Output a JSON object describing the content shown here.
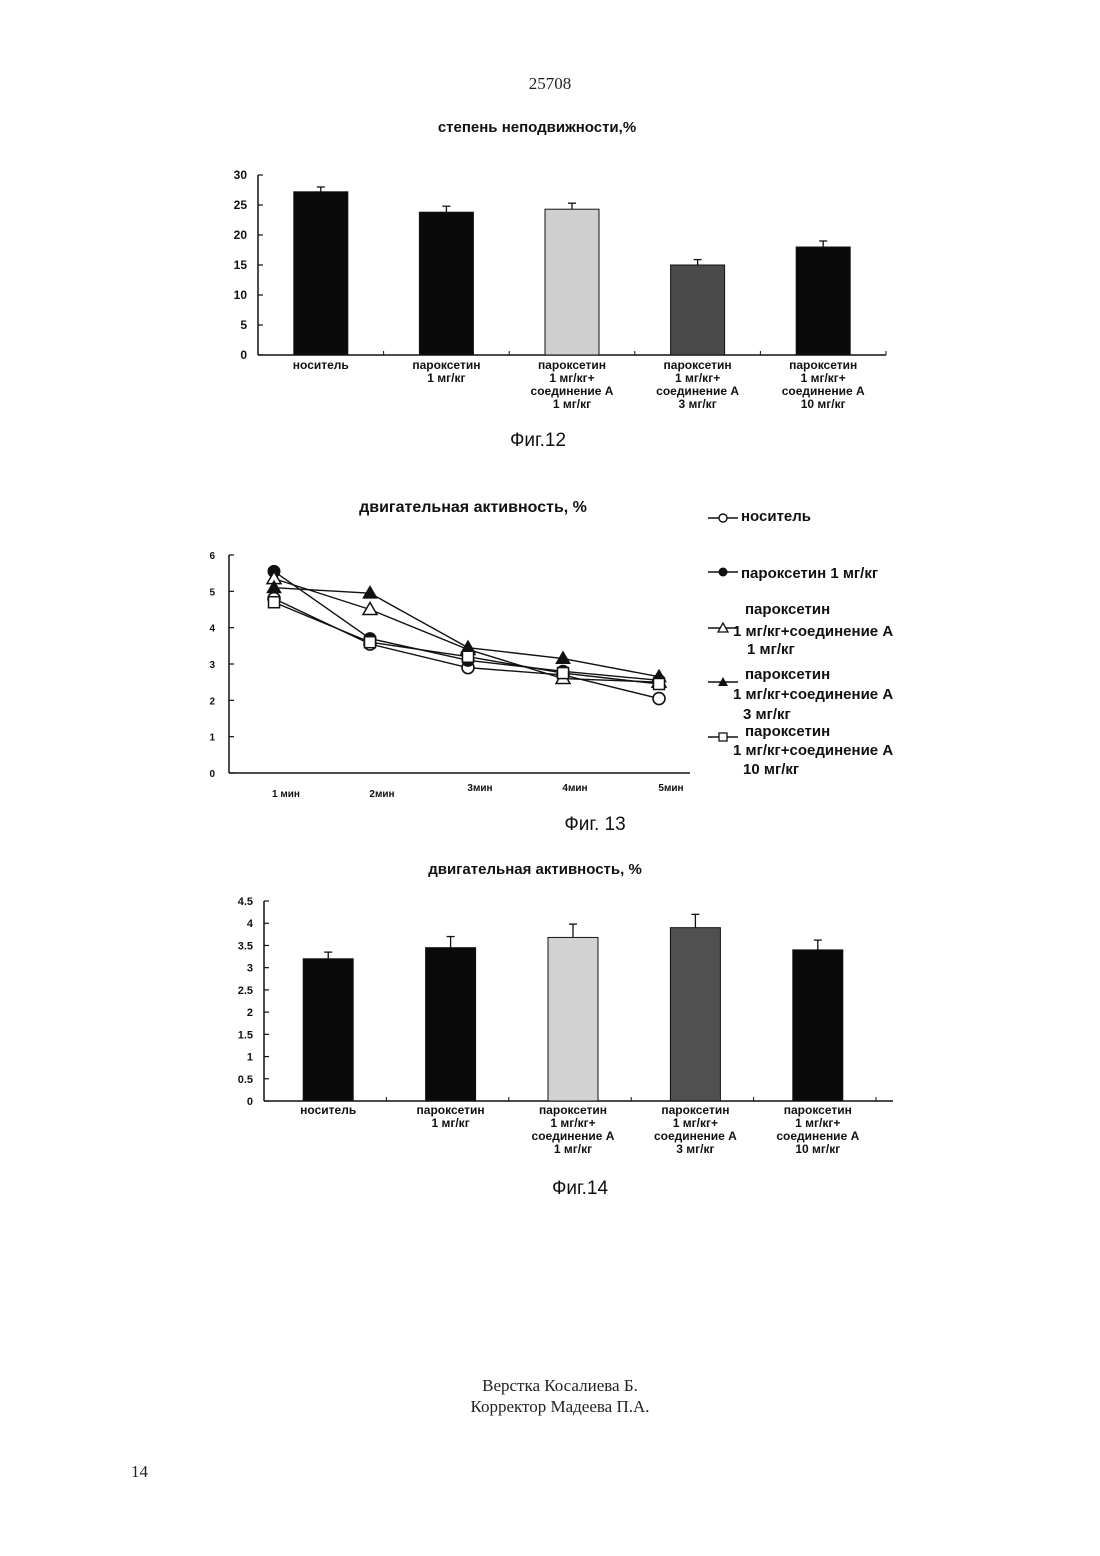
{
  "page": {
    "number_top": "25708",
    "number_bottom": "14",
    "credits": [
      "Верстка Косалиева Б.",
      "Корректор Мадеева П.А."
    ]
  },
  "chart_data": [
    {
      "type": "bar",
      "figure_label": "Фиг.12",
      "title": "степень неподвижности,%",
      "categories": [
        [
          "носитель"
        ],
        [
          "пароксетин",
          "1 мг/кг"
        ],
        [
          "пароксетин",
          "1 мг/кг+",
          "соединение А",
          "1 мг/кг"
        ],
        [
          "пароксетин",
          "1 мг/кг+",
          "соединение А",
          "3 мг/кг"
        ],
        [
          "пароксетин",
          "1 мг/кг+",
          "соединение А",
          "10 мг/кг"
        ]
      ],
      "values": [
        27.2,
        23.8,
        24.3,
        15.0,
        18.0
      ],
      "errors": [
        0.8,
        1.0,
        1.0,
        0.9,
        1.0
      ],
      "bar_fills": [
        "#0a0a0a",
        "#0a0a0a",
        "#cfcfcf",
        "#4a4a4a",
        "#0a0a0a"
      ],
      "ylim": [
        0,
        30
      ],
      "yticks": [
        "0",
        "5",
        "10",
        "15",
        "20",
        "25",
        "30"
      ],
      "xlabel": "",
      "ylabel": ""
    },
    {
      "type": "line",
      "figure_label": "Фиг. 13",
      "title": "двигательная активность, %",
      "x": [
        "1 мин",
        "2мин",
        "3мин",
        "4мин",
        "5мин"
      ],
      "ylim": [
        0,
        6
      ],
      "yticks": [
        "0",
        "1",
        "2",
        "3",
        "4",
        "5",
        "6"
      ],
      "legend_position": "right",
      "series": [
        {
          "name": [
            "носитель"
          ],
          "marker": "open-circle",
          "values": [
            4.8,
            3.55,
            2.9,
            2.7,
            2.05
          ]
        },
        {
          "name": [
            "пароксетин 1 мг/кг"
          ],
          "marker": "filled-circle",
          "values": [
            5.55,
            3.7,
            3.1,
            2.8,
            2.55
          ]
        },
        {
          "name": [
            "пароксетин",
            "1 мг/кг+соединение А",
            "1 мг/кг"
          ],
          "marker": "open-triangle",
          "values": [
            5.35,
            4.5,
            3.4,
            2.6,
            2.5
          ]
        },
        {
          "name": [
            "пароксетин",
            "1 мг/кг+соединение А",
            "3 мг/кг"
          ],
          "marker": "filled-triangle",
          "values": [
            5.1,
            4.95,
            3.45,
            3.15,
            2.65
          ]
        },
        {
          "name": [
            "пароксетин",
            "1 мг/кг+соединение А",
            "10 мг/кг"
          ],
          "marker": "open-square",
          "values": [
            4.7,
            3.6,
            3.2,
            2.75,
            2.45
          ]
        }
      ]
    },
    {
      "type": "bar",
      "figure_label": "Фиг.14",
      "title": "двигательная активность, %",
      "categories": [
        [
          "носитель"
        ],
        [
          "пароксетин",
          "1 мг/кг"
        ],
        [
          "пароксетин",
          "1 мг/кг+",
          "соединение А",
          "1 мг/кг"
        ],
        [
          "пароксетин",
          "1 мг/кг+",
          "соединение А",
          "3 мг/кг"
        ],
        [
          "пароксетин",
          "1 мг/кг+",
          "соединение А",
          "10 мг/кг"
        ]
      ],
      "values": [
        3.2,
        3.45,
        3.68,
        3.9,
        3.4
      ],
      "errors": [
        0.15,
        0.25,
        0.3,
        0.3,
        0.22
      ],
      "bar_fills": [
        "#0a0a0a",
        "#0a0a0a",
        "#d2d2d2",
        "#505050",
        "#0a0a0a"
      ],
      "ylim": [
        0,
        4.5
      ],
      "yticks": [
        "0",
        "0.5",
        "1",
        "1.5",
        "2",
        "2.5",
        "3",
        "3.5",
        "4",
        "4.5"
      ],
      "xlabel": "",
      "ylabel": ""
    }
  ]
}
